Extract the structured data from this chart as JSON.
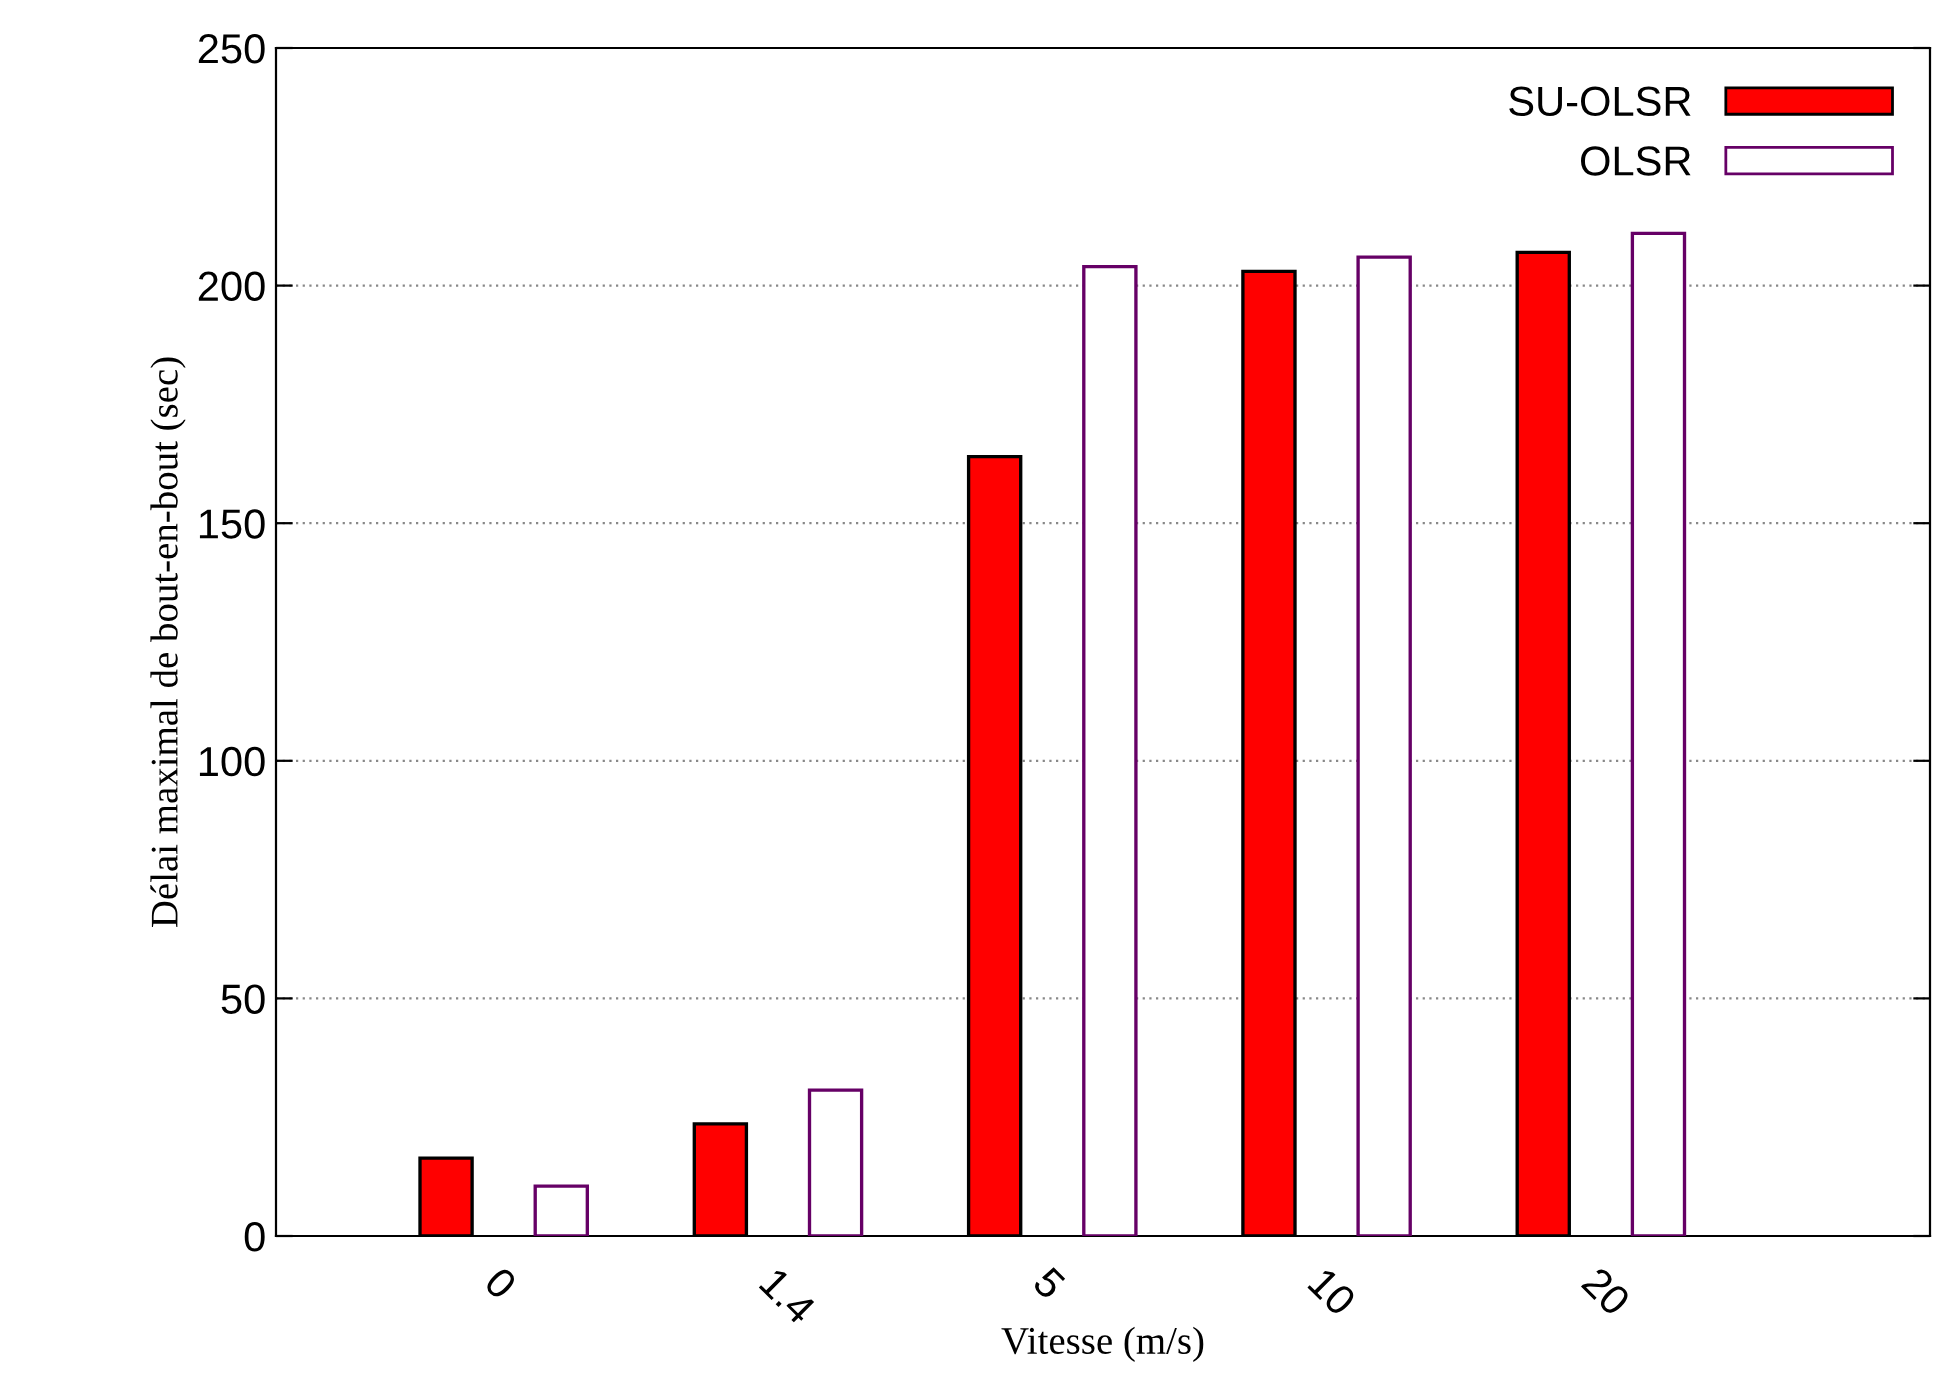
{
  "chart_data": {
    "type": "bar",
    "xlabel": "Vitesse (m/s)",
    "ylabel": "Délai maximal de bout-en-bout (sec)",
    "categories": [
      "0",
      "1.4",
      "5",
      "10",
      "20"
    ],
    "series": [
      {
        "name": "SU-OLSR",
        "color": "#ff0000",
        "values": [
          16.4,
          23.6,
          164,
          203,
          207
        ]
      },
      {
        "name": "OLSR",
        "color": "#ffffff",
        "values": [
          10.5,
          30.7,
          204,
          206,
          211
        ]
      }
    ],
    "ylim": [
      0,
      250
    ],
    "yticks": [
      0,
      50,
      100,
      150,
      200,
      250
    ],
    "grid": "y",
    "legend": "top right"
  }
}
